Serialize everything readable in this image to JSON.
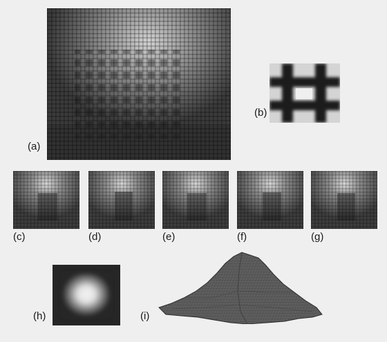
{
  "figure": {
    "panels": [
      {
        "id": "a",
        "label": "(a)",
        "content": "texture-image"
      },
      {
        "id": "b",
        "label": "(b)",
        "content": "texture-period"
      },
      {
        "id": "c",
        "label": "(c)",
        "content": "small-image"
      },
      {
        "id": "d",
        "label": "(d)",
        "content": "small-image"
      },
      {
        "id": "e",
        "label": "(e)",
        "content": "small-image"
      },
      {
        "id": "f",
        "label": "(f)",
        "content": "small-image"
      },
      {
        "id": "g",
        "label": "(g)",
        "content": "small-image"
      },
      {
        "id": "h",
        "label": "(h)",
        "content": "gaussian-blob"
      },
      {
        "id": "i",
        "label": "(i)",
        "content": "3d-surface-plot"
      }
    ],
    "colors": {
      "background": "#efefef",
      "image_dark": "#2a2a2a",
      "image_light": "#d8d8d8",
      "surface": "#5e5e5e",
      "surface_edge": "#2c2c2c"
    }
  }
}
